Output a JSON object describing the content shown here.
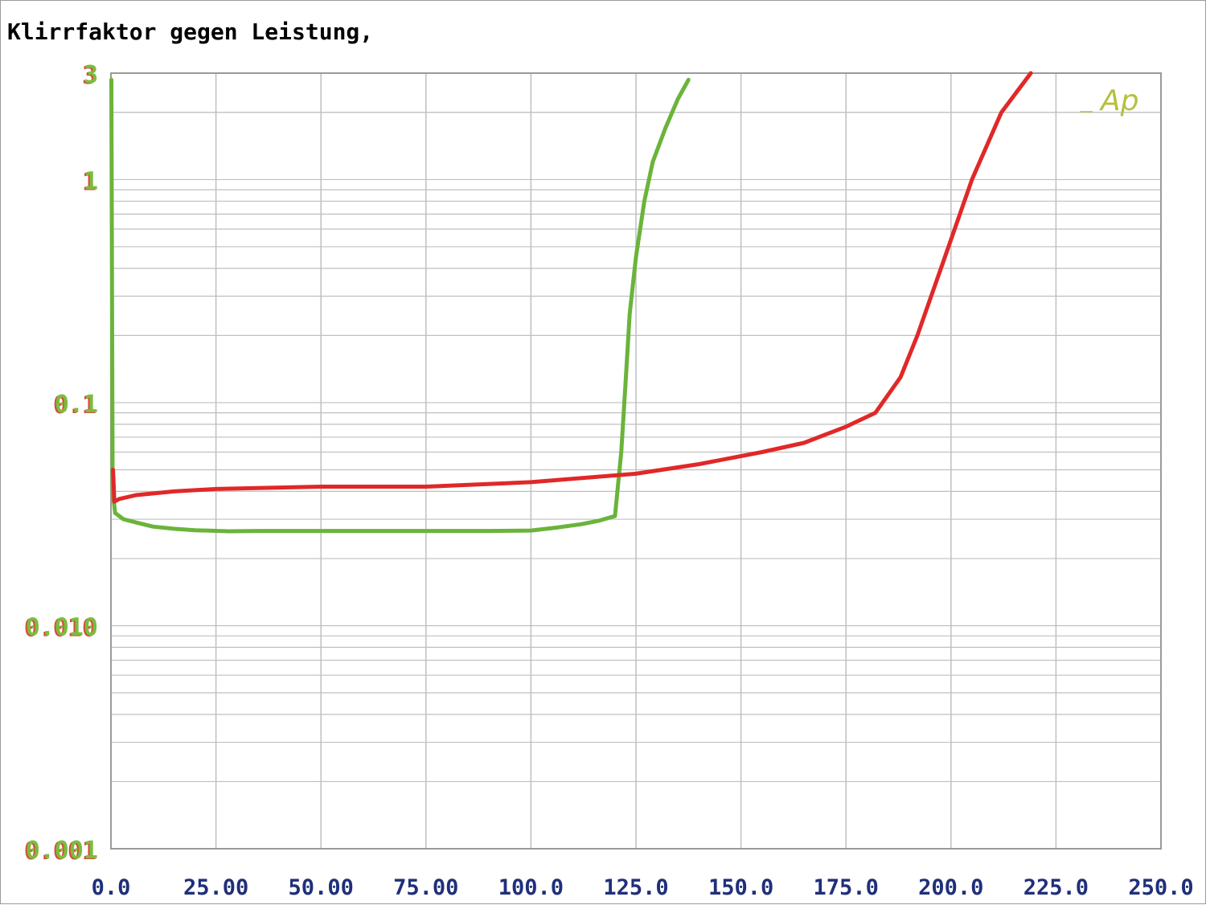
{
  "chart_data": {
    "type": "line",
    "title": "Klirrfaktor gegen Leistung,",
    "xlabel": "",
    "ylabel": "",
    "xlim": [
      0,
      250
    ],
    "ylim": [
      0.001,
      3
    ],
    "yscale": "log",
    "grid": true,
    "x_ticks": [
      "0.0",
      "25.00",
      "50.00",
      "75.00",
      "100.0",
      "125.0",
      "150.0",
      "175.0",
      "200.0",
      "225.0",
      "250.0"
    ],
    "y_ticks": [
      {
        "value": 3,
        "label": "3"
      },
      {
        "value": 1,
        "label": "1"
      },
      {
        "value": 0.1,
        "label": "0.1"
      },
      {
        "value": 0.01,
        "label": "0.010"
      },
      {
        "value": 0.001,
        "label": "0.001"
      }
    ],
    "series": [
      {
        "color": "#6ab43a",
        "points": [
          [
            0.1,
            2.8
          ],
          [
            0.3,
            0.15
          ],
          [
            0.4,
            0.04
          ],
          [
            1,
            0.032
          ],
          [
            3,
            0.03
          ],
          [
            6,
            0.029
          ],
          [
            10,
            0.0278
          ],
          [
            15,
            0.0272
          ],
          [
            20,
            0.0268
          ],
          [
            28,
            0.0265
          ],
          [
            35,
            0.0266
          ],
          [
            50,
            0.0266
          ],
          [
            75,
            0.0266
          ],
          [
            90,
            0.0266
          ],
          [
            100,
            0.0267
          ],
          [
            106,
            0.0275
          ],
          [
            112,
            0.0285
          ],
          [
            116,
            0.0295
          ],
          [
            120,
            0.031
          ],
          [
            121.5,
            0.06
          ],
          [
            122.5,
            0.12
          ],
          [
            123.5,
            0.25
          ],
          [
            125,
            0.45
          ],
          [
            127,
            0.8
          ],
          [
            129,
            1.2
          ],
          [
            132,
            1.7
          ],
          [
            135,
            2.3
          ],
          [
            137.5,
            2.8
          ]
        ]
      },
      {
        "color": "#e02828",
        "points": [
          [
            0.5,
            0.05
          ],
          [
            0.8,
            0.036
          ],
          [
            2,
            0.037
          ],
          [
            6,
            0.0385
          ],
          [
            15,
            0.04
          ],
          [
            25,
            0.041
          ],
          [
            50,
            0.042
          ],
          [
            75,
            0.042
          ],
          [
            100,
            0.044
          ],
          [
            125,
            0.048
          ],
          [
            140,
            0.053
          ],
          [
            155,
            0.06
          ],
          [
            165,
            0.066
          ],
          [
            175,
            0.078
          ],
          [
            182,
            0.09
          ],
          [
            188,
            0.13
          ],
          [
            192,
            0.2
          ],
          [
            198,
            0.42
          ],
          [
            205,
            1.0
          ],
          [
            212,
            2.0
          ],
          [
            219,
            3.0
          ]
        ]
      }
    ],
    "annotations": [
      {
        "text": "Ap",
        "color": "#b5c040",
        "position": "top-right"
      }
    ],
    "colors": {
      "grid": "#bfbfbf",
      "axis_frame": "#9a9a9a",
      "x_tick_color": "#1f2f7a",
      "y_tick_color": "#7cbc3e",
      "y_tick_shadow": "#d84a3a"
    }
  }
}
